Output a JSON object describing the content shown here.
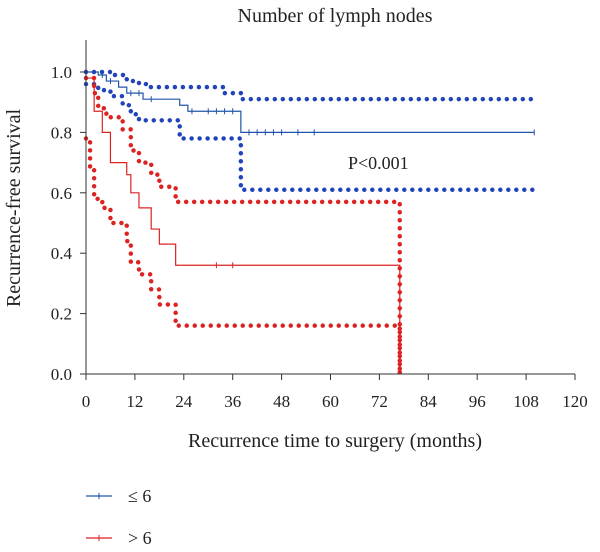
{
  "chart_data": {
    "type": "line",
    "title": "Number of lymph nodes",
    "xlabel": "Recurrence time to surgery (months)",
    "ylabel": "Recurrence-free survival",
    "xlim": [
      0,
      120
    ],
    "ylim": [
      0,
      1.0
    ],
    "x_ticks": [
      "0",
      "12",
      "24",
      "36",
      "48",
      "60",
      "72",
      "84",
      "96",
      "108",
      "120"
    ],
    "y_ticks": [
      "0.0",
      "0.2",
      "0.4",
      "0.6",
      "0.8",
      "1.0"
    ],
    "grid": false,
    "annotation": "P<0.001",
    "legend_position": "bottom-left",
    "series": [
      {
        "name": "≤ 6",
        "color": "#2255aa",
        "style": "solid",
        "steps": [
          [
            0,
            1.0
          ],
          [
            3,
            0.99
          ],
          [
            5,
            0.97
          ],
          [
            8,
            0.95
          ],
          [
            10,
            0.93
          ],
          [
            14,
            0.91
          ],
          [
            23,
            0.89
          ],
          [
            25,
            0.87
          ],
          [
            38,
            0.8
          ],
          [
            110,
            0.8
          ]
        ],
        "censor_x": [
          4,
          6,
          11,
          13,
          16,
          26,
          30,
          32,
          34,
          36,
          40,
          42,
          44,
          46,
          48,
          52,
          56,
          110
        ]
      },
      {
        "name": "≤ 6 upper 95% CI",
        "color": "#2244bb",
        "style": "dotted",
        "steps": [
          [
            0,
            1.0
          ],
          [
            6,
            0.99
          ],
          [
            10,
            0.97
          ],
          [
            13,
            0.96
          ],
          [
            15,
            0.95
          ],
          [
            34,
            0.93
          ],
          [
            38,
            0.91
          ],
          [
            110,
            0.91
          ]
        ]
      },
      {
        "name": "≤ 6 lower 95% CI",
        "color": "#2244bb",
        "style": "dotted",
        "steps": [
          [
            0,
            0.96
          ],
          [
            3,
            0.94
          ],
          [
            6,
            0.92
          ],
          [
            9,
            0.89
          ],
          [
            11,
            0.86
          ],
          [
            13,
            0.84
          ],
          [
            23,
            0.78
          ],
          [
            25,
            0.78
          ],
          [
            37,
            0.78
          ],
          [
            38,
            0.61
          ],
          [
            110,
            0.61
          ]
        ]
      },
      {
        "name": "> 6",
        "color": "#dd2222",
        "style": "solid",
        "steps": [
          [
            0,
            0.98
          ],
          [
            2,
            0.87
          ],
          [
            4,
            0.8
          ],
          [
            6,
            0.7
          ],
          [
            10,
            0.66
          ],
          [
            11,
            0.6
          ],
          [
            13,
            0.55
          ],
          [
            16,
            0.48
          ],
          [
            18,
            0.43
          ],
          [
            22,
            0.36
          ],
          [
            77,
            0.36
          ],
          [
            77,
            0.0
          ]
        ],
        "censor_x": [
          32,
          36
        ]
      },
      {
        "name": "> 6 upper 95% CI",
        "color": "#dd2222",
        "style": "dotted",
        "steps": [
          [
            0,
            0.98
          ],
          [
            2,
            0.93
          ],
          [
            3,
            0.88
          ],
          [
            5,
            0.85
          ],
          [
            9,
            0.81
          ],
          [
            11,
            0.74
          ],
          [
            13,
            0.7
          ],
          [
            16,
            0.66
          ],
          [
            18,
            0.62
          ],
          [
            22,
            0.57
          ],
          [
            76,
            0.57
          ],
          [
            77,
            0.0
          ]
        ]
      },
      {
        "name": "> 6 lower 95% CI",
        "color": "#dd2222",
        "style": "dotted",
        "steps": [
          [
            0,
            0.78
          ],
          [
            1,
            0.68
          ],
          [
            2,
            0.58
          ],
          [
            4,
            0.55
          ],
          [
            6,
            0.5
          ],
          [
            10,
            0.44
          ],
          [
            11,
            0.37
          ],
          [
            13,
            0.33
          ],
          [
            16,
            0.28
          ],
          [
            18,
            0.23
          ],
          [
            22,
            0.16
          ],
          [
            76,
            0.16
          ],
          [
            77,
            0.0
          ]
        ]
      }
    ],
    "legend": [
      {
        "label": "≤ 6",
        "color": "#2255aa"
      },
      {
        "label": "> 6",
        "color": "#dd2222"
      }
    ]
  }
}
